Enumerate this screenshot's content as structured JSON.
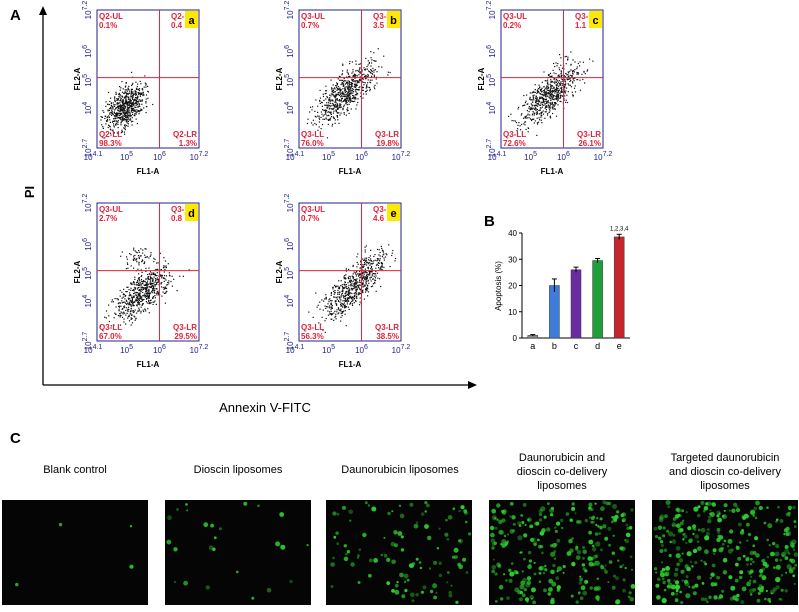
{
  "panel_labels": [
    "A",
    "B",
    "C"
  ],
  "panel_a": {
    "y_label": "PI",
    "x_label": "Annexin V-FITC",
    "plot_x_label": "FL1-A",
    "plot_y_label": "FL2-A",
    "x_ticks": [
      {
        "base": "10",
        "exp": "4.1"
      },
      {
        "base": "10",
        "exp": "5"
      },
      {
        "base": "10",
        "exp": "6"
      },
      {
        "base": "10",
        "exp": "7.2"
      }
    ],
    "y_ticks": [
      {
        "base": "10",
        "exp": "2.7"
      },
      {
        "base": "10",
        "exp": "4"
      },
      {
        "base": "10",
        "exp": "5"
      },
      {
        "base": "10",
        "exp": "6"
      },
      {
        "base": "10",
        "exp": "7.2"
      }
    ],
    "plots": [
      {
        "tag": "a",
        "ul_name": "Q2-UL",
        "ul": "0.1%",
        "ur_name": "Q2-",
        "ur": "0.4",
        "ll_name": "Q2-LL",
        "ll": "98.3%",
        "lr_name": "Q2-LR",
        "lr": "1.3%"
      },
      {
        "tag": "b",
        "ul_name": "Q3-UL",
        "ul": "0.7%",
        "ur_name": "Q3-I",
        "ur": "3.5",
        "ll_name": "Q3-LL",
        "ll": "76.0%",
        "lr_name": "Q3-LR",
        "lr": "19.8%"
      },
      {
        "tag": "c",
        "ul_name": "Q3-UL",
        "ul": "0.2%",
        "ur_name": "Q3-",
        "ur": "1.1",
        "ll_name": "Q3-LL",
        "ll": "72.6%",
        "lr_name": "Q3-LR",
        "lr": "26.1%"
      },
      {
        "tag": "d",
        "ul_name": "Q3-UL",
        "ul": "2.7%",
        "ur_name": "Q3-",
        "ur": "0.8",
        "ll_name": "Q3-LL",
        "ll": "67.0%",
        "lr_name": "Q3-LR",
        "lr": "29.5%"
      },
      {
        "tag": "e",
        "ul_name": "Q3-UL",
        "ul": "0.7%",
        "ur_name": "Q3-",
        "ur": "4.6",
        "ll_name": "Q3-LL",
        "ll": "56.3%",
        "lr_name": "Q3-LR",
        "lr": "38.5%"
      }
    ]
  },
  "chart_data": {
    "type": "bar",
    "y_label": "Apoptosis (%)",
    "categories": [
      "a",
      "b",
      "c",
      "d",
      "e"
    ],
    "values": [
      1,
      20,
      26,
      29.5,
      38.5
    ],
    "errors": [
      0.3,
      2.5,
      1,
      0.8,
      1
    ],
    "colors": [
      "#8c8c8c",
      "#3b7dd8",
      "#6a2ca0",
      "#1f9e3a",
      "#c4262e"
    ],
    "ylim": [
      0,
      40
    ],
    "yticks": [
      0,
      10,
      20,
      30,
      40
    ],
    "annotation": "1,2,3,4"
  },
  "panel_c": {
    "captions": [
      [
        "Blank control"
      ],
      [
        "Dioscin liposomes"
      ],
      [
        "Daunorubicin liposomes"
      ],
      [
        "Daunorubicin and",
        "dioscin co-delivery",
        "liposomes"
      ],
      [
        "Targeted daunorubicin",
        "and dioscin co-delivery",
        "liposomes"
      ]
    ]
  }
}
